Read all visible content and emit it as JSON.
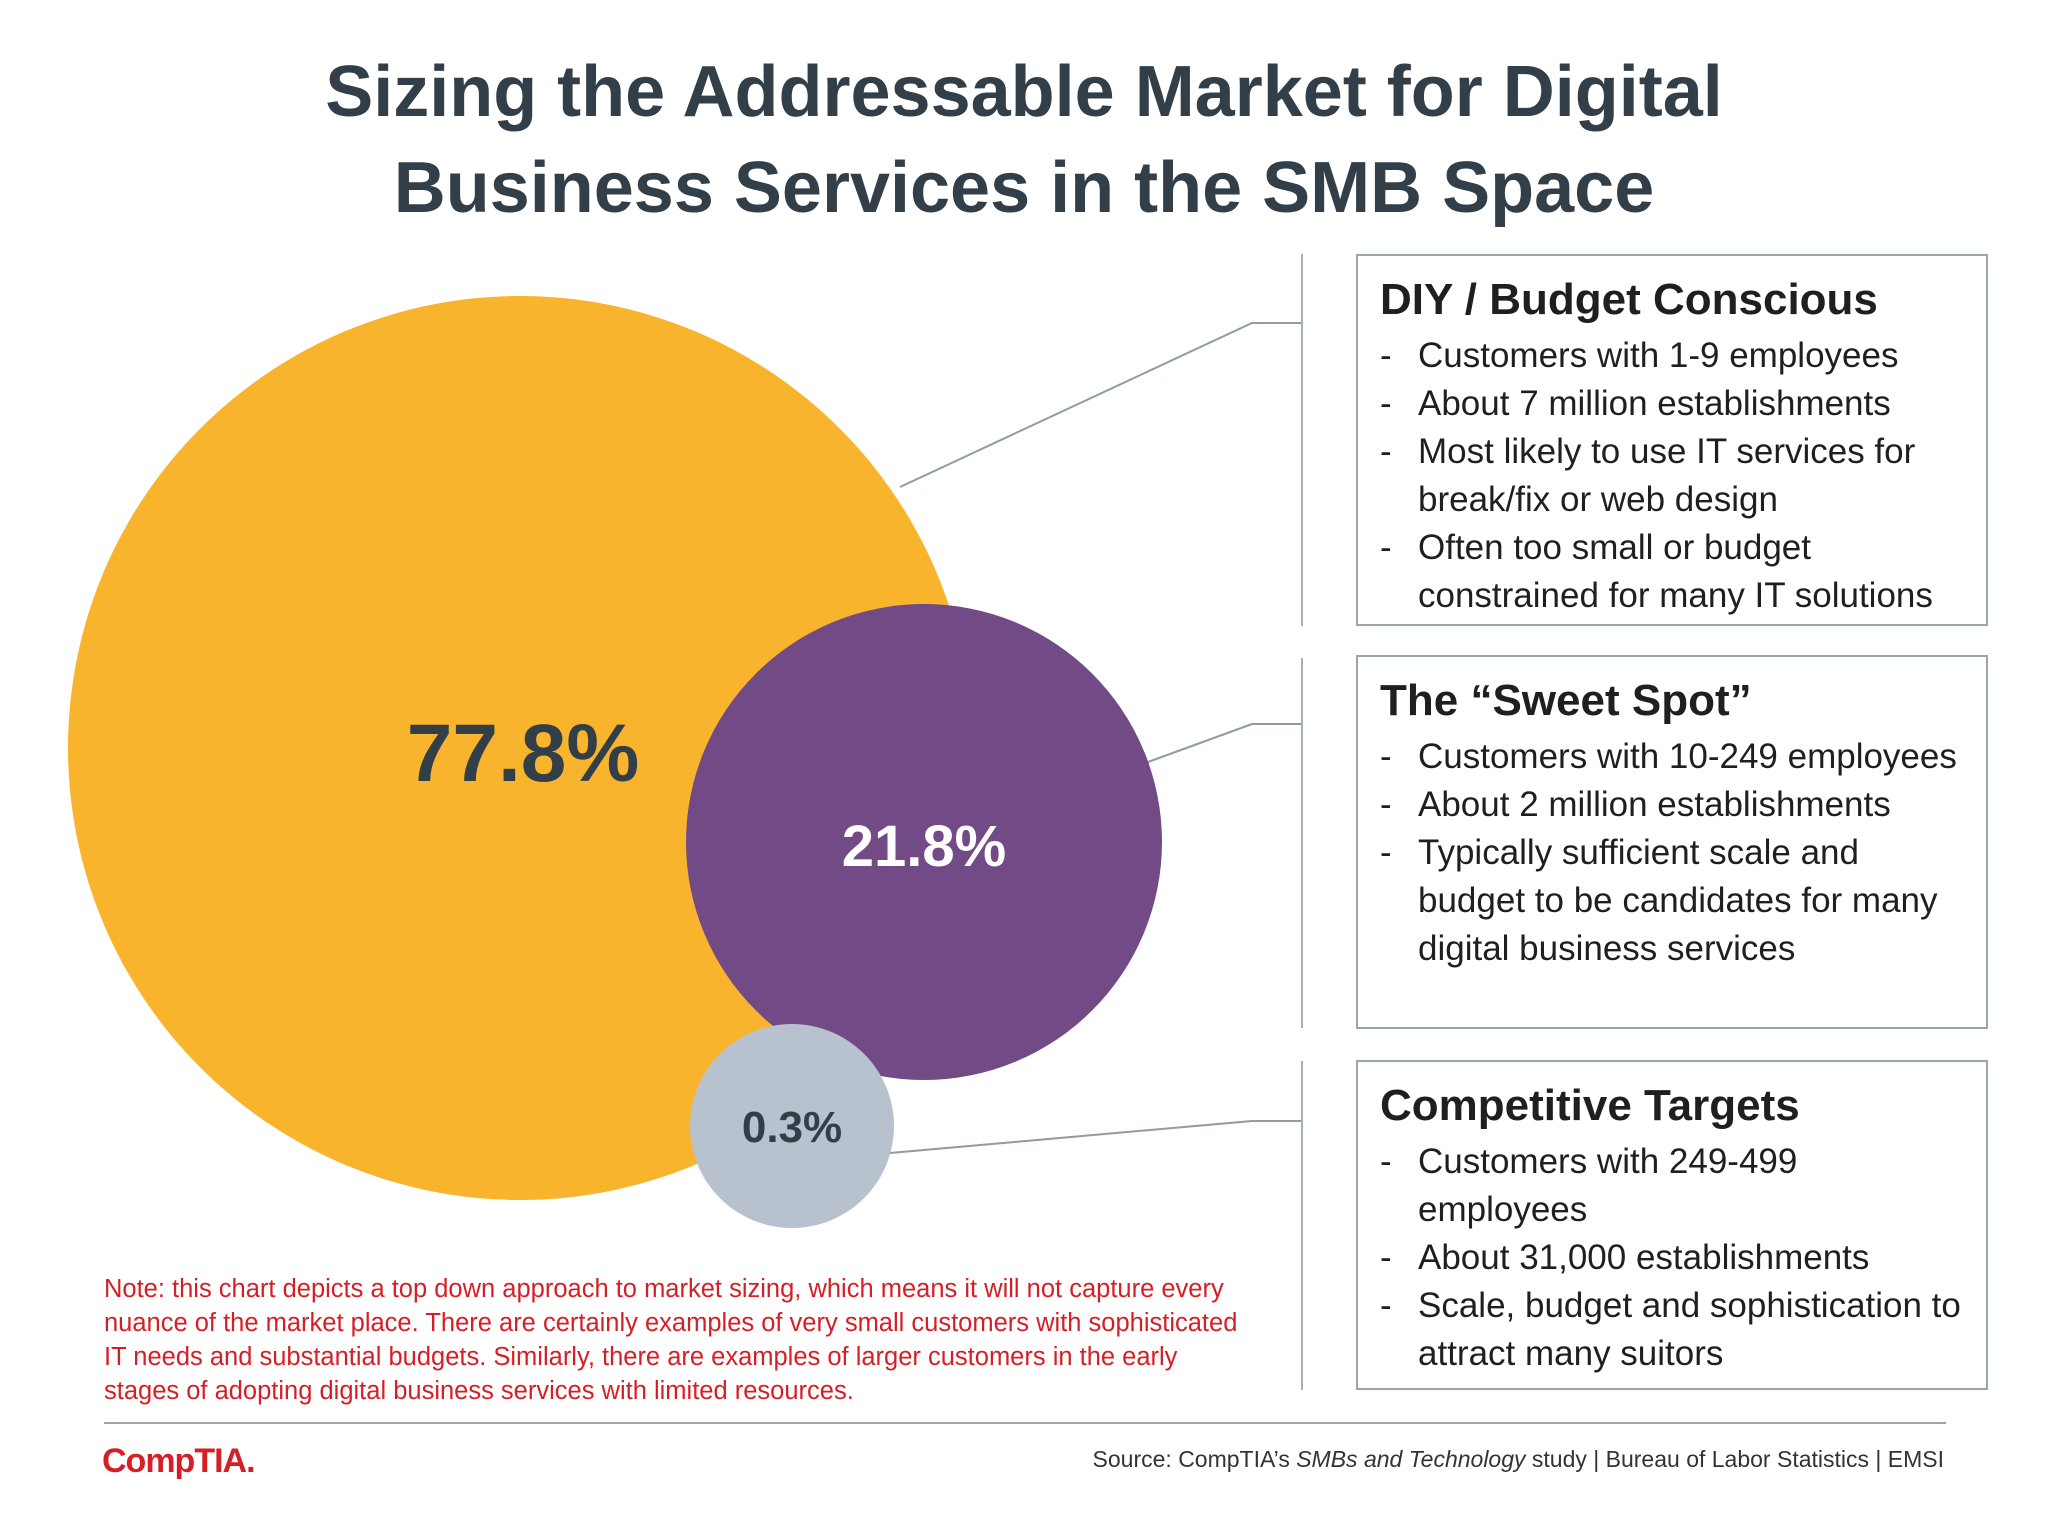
{
  "title": {
    "line1": "Sizing the Addressable Market for Digital",
    "line2": "Business Services in the SMB Space"
  },
  "chart_data": {
    "type": "bubble",
    "series": [
      {
        "name": "DIY / Budget Conscious",
        "value": 77.8,
        "label": "77.8%",
        "color": "#f9b42d",
        "label_color": "#333f48"
      },
      {
        "name": "The “Sweet Spot”",
        "value": 21.8,
        "label": "21.8%",
        "color": "#714a86",
        "label_color": "#ffffff"
      },
      {
        "name": "Competitive Targets",
        "value": 0.3,
        "label": "0.3%",
        "color": "#b7c2ce",
        "label_color": "#333f48"
      }
    ]
  },
  "segments": [
    {
      "heading": "DIY / Budget Conscious",
      "bullets": [
        "Customers with 1-9 employees",
        "About 7 million establishments",
        "Most likely to use IT services for break/fix or web design",
        "Often too small or budget constrained for many IT solutions"
      ]
    },
    {
      "heading": "The “Sweet Spot”",
      "bullets": [
        "Customers with 10-249 employees",
        "About 2 million establishments",
        "Typically sufficient scale and budget to be candidates for many digital business services"
      ]
    },
    {
      "heading": "Competitive Targets",
      "bullets": [
        "Customers with 249-499 employees",
        "About 31,000 establishments",
        "Scale, budget and sophistication to attract many suitors"
      ]
    }
  ],
  "note": "Note: this chart depicts a top down approach to market sizing, which means it will not capture every nuance of the market place. There are certainly examples of very small customers with sophisticated IT needs and substantial budgets. Similarly, there are examples of larger customers in the early stages of adopting digital business services with limited resources.",
  "logo": {
    "text": "CompTIA",
    "mark": "."
  },
  "source": {
    "prefix": "Source: CompTIA’s ",
    "study": "SMBs and Technology",
    "suffix": " study | Bureau of Labor Statistics | EMSI"
  }
}
